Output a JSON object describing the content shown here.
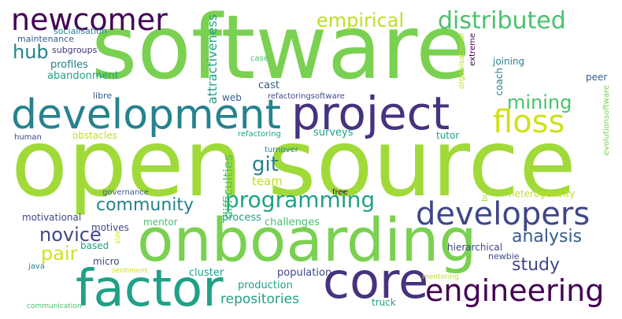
{
  "colors": {
    "background": "#ffffff",
    "lime": "#a0da39",
    "green": "#4ac16d",
    "grass": "#7ad151",
    "teal": "#1fa187",
    "cyan": "#26828e",
    "blue": "#365c8d",
    "indigo": "#3f4788",
    "purple": "#440154",
    "darkpurple": "#46327e",
    "yellow": "#d0e11c",
    "palegreen": "#bddf26"
  },
  "words": [
    {
      "text": "software"
    },
    {
      "text": "open"
    },
    {
      "text": "source"
    },
    {
      "text": "onboarding"
    },
    {
      "text": "development"
    },
    {
      "text": "project"
    },
    {
      "text": "factor"
    },
    {
      "text": "core"
    },
    {
      "text": "newcomer"
    },
    {
      "text": "developers"
    },
    {
      "text": "engineering"
    },
    {
      "text": "distributed"
    },
    {
      "text": "floss"
    },
    {
      "text": "programming"
    },
    {
      "text": "empirical"
    },
    {
      "text": "mining"
    },
    {
      "text": "community"
    },
    {
      "text": "analysis"
    },
    {
      "text": "novice"
    },
    {
      "text": "study"
    },
    {
      "text": "pair"
    },
    {
      "text": "git"
    },
    {
      "text": "hub"
    },
    {
      "text": "repositories"
    },
    {
      "text": "team"
    },
    {
      "text": "difficulties"
    },
    {
      "text": "attractiveness"
    },
    {
      "text": "socialisation"
    },
    {
      "text": "maintenance"
    },
    {
      "text": "subgroups"
    },
    {
      "text": "profiles"
    },
    {
      "text": "abandonment"
    },
    {
      "text": "libre"
    },
    {
      "text": "human"
    },
    {
      "text": "obstacles"
    },
    {
      "text": "governance"
    },
    {
      "text": "motivational"
    },
    {
      "text": "motives"
    },
    {
      "text": "based"
    },
    {
      "text": "java"
    },
    {
      "text": "communication"
    },
    {
      "text": "micro"
    },
    {
      "text": "mentor"
    },
    {
      "text": "size"
    },
    {
      "text": "sentiment"
    },
    {
      "text": "cluster"
    },
    {
      "text": "production"
    },
    {
      "text": "population"
    },
    {
      "text": "process"
    },
    {
      "text": "challenges"
    },
    {
      "text": "case"
    },
    {
      "text": "cast"
    },
    {
      "text": "web"
    },
    {
      "text": "refactoringsoftware"
    },
    {
      "text": "refactoring"
    },
    {
      "text": "surveys"
    },
    {
      "text": "turnover"
    },
    {
      "text": "free"
    },
    {
      "text": "bus"
    },
    {
      "text": "truck"
    },
    {
      "text": "mentoring"
    },
    {
      "text": "hierarchical"
    },
    {
      "text": "newbie"
    },
    {
      "text": "heterogeneity"
    },
    {
      "text": "tutor"
    },
    {
      "text": "coach"
    },
    {
      "text": "joining"
    },
    {
      "text": "peer"
    },
    {
      "text": "organisational"
    },
    {
      "text": "extreme"
    },
    {
      "text": "evolutionsoftware"
    }
  ]
}
